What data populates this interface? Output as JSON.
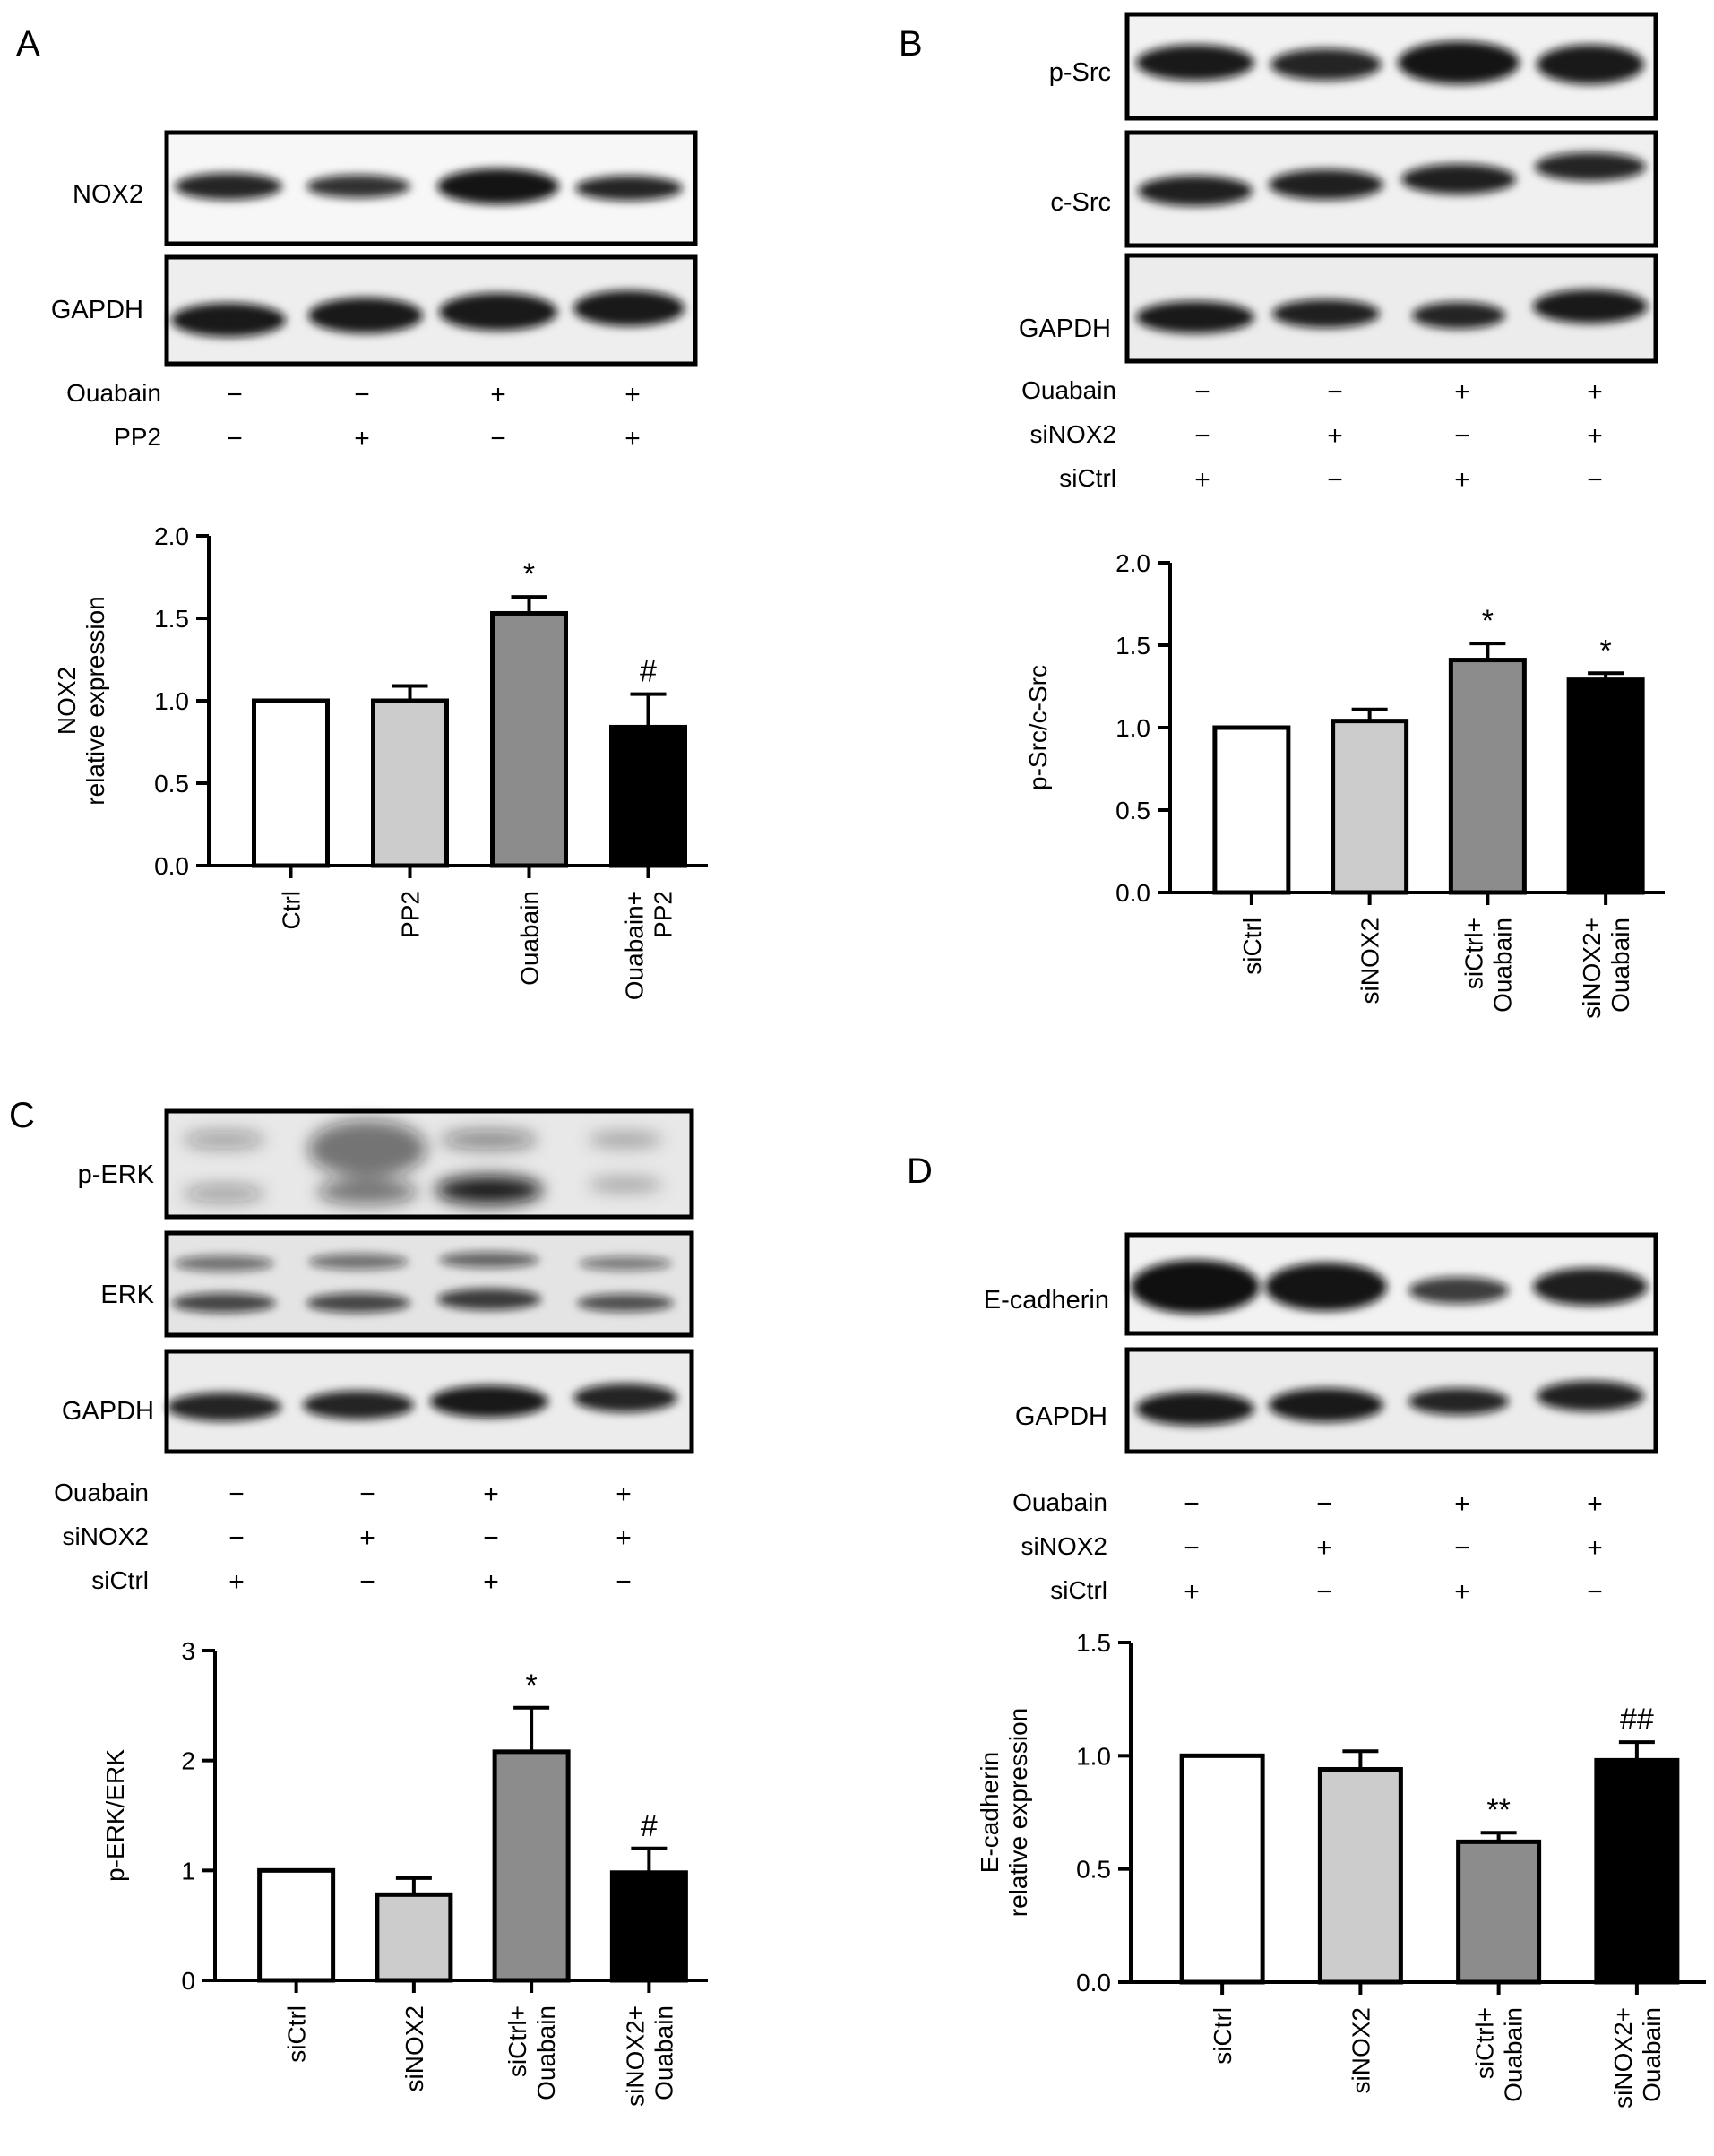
{
  "figure": {
    "panels": [
      {
        "id": "A",
        "blots": [
          "NOX2",
          "GAPDH"
        ],
        "conditions": [
          {
            "name": "Ouabain",
            "marks": [
              "−",
              "−",
              "+",
              "+"
            ]
          },
          {
            "name": "PP2",
            "marks": [
              "−",
              "+",
              "−",
              "+"
            ]
          }
        ]
      },
      {
        "id": "B",
        "blots": [
          "p-Src",
          "c-Src",
          "GAPDH"
        ],
        "conditions": [
          {
            "name": "Ouabain",
            "marks": [
              "−",
              "−",
              "+",
              "+"
            ]
          },
          {
            "name": "siNOX2",
            "marks": [
              "−",
              "+",
              "−",
              "+"
            ]
          },
          {
            "name": "siCtrl",
            "marks": [
              "+",
              "−",
              "+",
              "−"
            ]
          }
        ]
      },
      {
        "id": "C",
        "blots": [
          "p-ERK",
          "ERK",
          "GAPDH"
        ],
        "conditions": [
          {
            "name": "Ouabain",
            "marks": [
              "−",
              "−",
              "+",
              "+"
            ]
          },
          {
            "name": "siNOX2",
            "marks": [
              "−",
              "+",
              "−",
              "+"
            ]
          },
          {
            "name": "siCtrl",
            "marks": [
              "+",
              "−",
              "+",
              "−"
            ]
          }
        ]
      },
      {
        "id": "D",
        "blots": [
          "E-cadherin",
          "GAPDH"
        ],
        "conditions": [
          {
            "name": "Ouabain",
            "marks": [
              "−",
              "−",
              "+",
              "+"
            ]
          },
          {
            "name": "siNOX2",
            "marks": [
              "−",
              "+",
              "−",
              "+"
            ]
          },
          {
            "name": "siCtrl",
            "marks": [
              "+",
              "−",
              "+",
              "−"
            ]
          }
        ]
      }
    ]
  },
  "colors": {
    "bar_fills": [
      "#ffffff",
      "#cccccc",
      "#8c8c8c",
      "#000000"
    ],
    "stroke": "#000000"
  },
  "chart_data": [
    {
      "panel": "A",
      "type": "bar",
      "categories": [
        [
          "Ctrl"
        ],
        [
          "PP2"
        ],
        [
          "Ouabain"
        ],
        [
          "Ouabain+",
          "PP2"
        ]
      ],
      "values": [
        1.0,
        1.0,
        1.53,
        0.84
      ],
      "errors": [
        0.0,
        0.09,
        0.1,
        0.2
      ],
      "annotations": [
        "",
        "",
        "*",
        "#"
      ],
      "ylabel": [
        "NOX2",
        "relative expression"
      ],
      "ylim": [
        0,
        2.0
      ],
      "yticks": [
        "0.0",
        "0.5",
        "1.0",
        "1.5",
        "2.0"
      ]
    },
    {
      "panel": "B",
      "type": "bar",
      "categories": [
        [
          "siCtrl"
        ],
        [
          "siNOX2"
        ],
        [
          "siCtrl+",
          "Ouabain"
        ],
        [
          "siNOX2+",
          "Ouabain"
        ]
      ],
      "values": [
        1.0,
        1.04,
        1.41,
        1.29
      ],
      "errors": [
        0.0,
        0.07,
        0.1,
        0.04
      ],
      "annotations": [
        "",
        "",
        "*",
        "*"
      ],
      "ylabel": [
        "p-Src/c-Src"
      ],
      "ylim": [
        0,
        2.0
      ],
      "yticks": [
        "0.0",
        "0.5",
        "1.0",
        "1.5",
        "2.0"
      ]
    },
    {
      "panel": "C",
      "type": "bar",
      "categories": [
        [
          "siCtrl"
        ],
        [
          "siNOX2"
        ],
        [
          "siCtrl+",
          "Ouabain"
        ],
        [
          "siNOX2+",
          "Ouabain"
        ]
      ],
      "values": [
        1.0,
        0.78,
        2.08,
        0.98
      ],
      "errors": [
        0.0,
        0.15,
        0.4,
        0.22
      ],
      "annotations": [
        "",
        "",
        "*",
        "#"
      ],
      "ylabel": [
        "p-ERK/ERK"
      ],
      "ylim": [
        0,
        3
      ],
      "yticks": [
        "0",
        "1",
        "2",
        "3"
      ]
    },
    {
      "panel": "D",
      "type": "bar",
      "categories": [
        [
          "siCtrl"
        ],
        [
          "siNOX2"
        ],
        [
          "siCtrl+",
          "Ouabain"
        ],
        [
          "siNOX2+",
          "Ouabain"
        ]
      ],
      "values": [
        1.0,
        0.94,
        0.62,
        0.98
      ],
      "errors": [
        0.0,
        0.08,
        0.04,
        0.08
      ],
      "annotations": [
        "",
        "",
        "**",
        "##"
      ],
      "ylabel": [
        "E-cadherin",
        "relative expression"
      ],
      "ylim": [
        0,
        1.5
      ],
      "yticks": [
        "0.0",
        "0.5",
        "1.0",
        "1.5"
      ]
    }
  ]
}
